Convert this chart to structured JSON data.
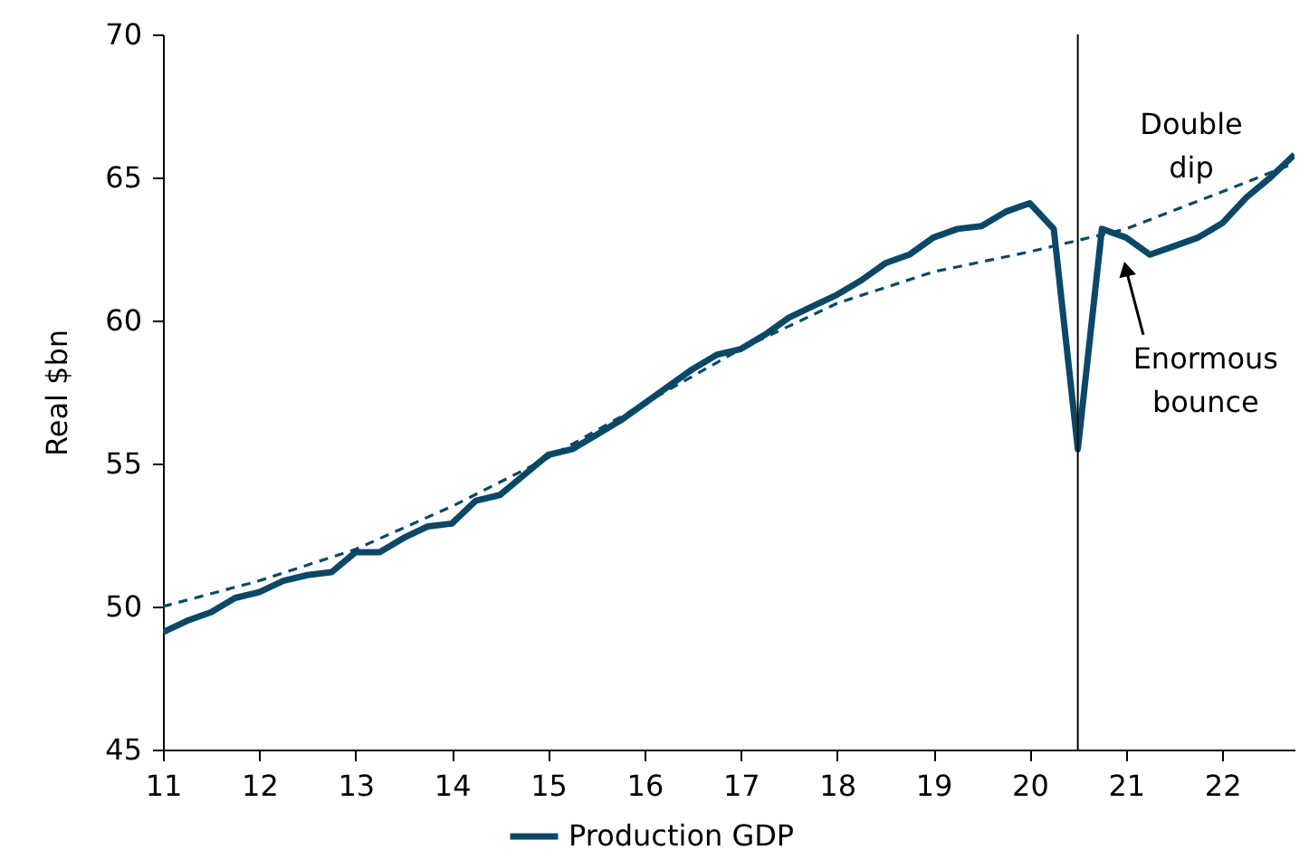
{
  "chart_data": {
    "type": "line",
    "ylabel": "Real $bn",
    "x": [
      11,
      11.25,
      11.5,
      11.75,
      12,
      12.25,
      12.5,
      12.75,
      13,
      13.25,
      13.5,
      13.75,
      14,
      14.25,
      14.5,
      14.75,
      15,
      15.25,
      15.5,
      15.75,
      16,
      16.25,
      16.5,
      16.75,
      17,
      17.25,
      17.5,
      17.75,
      18,
      18.25,
      18.5,
      18.75,
      19,
      19.25,
      19.5,
      19.75,
      20,
      20.25,
      20.5,
      20.75,
      21,
      21.25,
      21.5,
      21.75,
      22,
      22.25,
      22.5,
      22.75
    ],
    "series": [
      {
        "name": "Production GDP",
        "color": "#0b4868",
        "line_style": "solid",
        "values": [
          49.1,
          49.5,
          49.8,
          50.3,
          50.5,
          50.9,
          51.1,
          51.2,
          51.9,
          51.9,
          52.4,
          52.8,
          52.9,
          53.7,
          53.9,
          54.6,
          55.3,
          55.5,
          56.0,
          56.5,
          57.1,
          57.7,
          58.3,
          58.8,
          59.0,
          59.5,
          60.1,
          60.5,
          60.9,
          61.4,
          62.0,
          62.3,
          62.9,
          63.2,
          63.3,
          63.8,
          64.1,
          63.2,
          55.5,
          63.2,
          62.9,
          62.3,
          62.6,
          62.9,
          63.4,
          64.3,
          65.0,
          65.8
        ]
      },
      {
        "type": "line",
        "color": "#0b4868",
        "line_style": "dashed",
        "x": [
          11,
          12,
          13,
          14,
          15,
          16,
          17,
          18,
          19,
          20,
          21,
          22,
          22.75
        ],
        "values": [
          50.0,
          50.9,
          52.0,
          53.5,
          55.2,
          57.1,
          59.0,
          60.6,
          61.7,
          62.4,
          63.2,
          64.5,
          65.5
        ]
      }
    ],
    "xlim": [
      11,
      22.75
    ],
    "xticks": [
      11,
      12,
      13,
      14,
      15,
      16,
      17,
      18,
      19,
      20,
      21,
      22
    ],
    "ylim": [
      45,
      70
    ],
    "yticks": [
      45,
      50,
      55,
      60,
      65,
      70
    ],
    "ref_lines": [
      {
        "axis": "x",
        "value": 20.5,
        "color": "#000000"
      }
    ],
    "annotations": [
      "Double dip",
      {
        "text": "Enormous bounce",
        "x": 21,
        "y": 61.8
      }
    ],
    "grid": false,
    "legend": "bottom",
    "marker": "none"
  }
}
